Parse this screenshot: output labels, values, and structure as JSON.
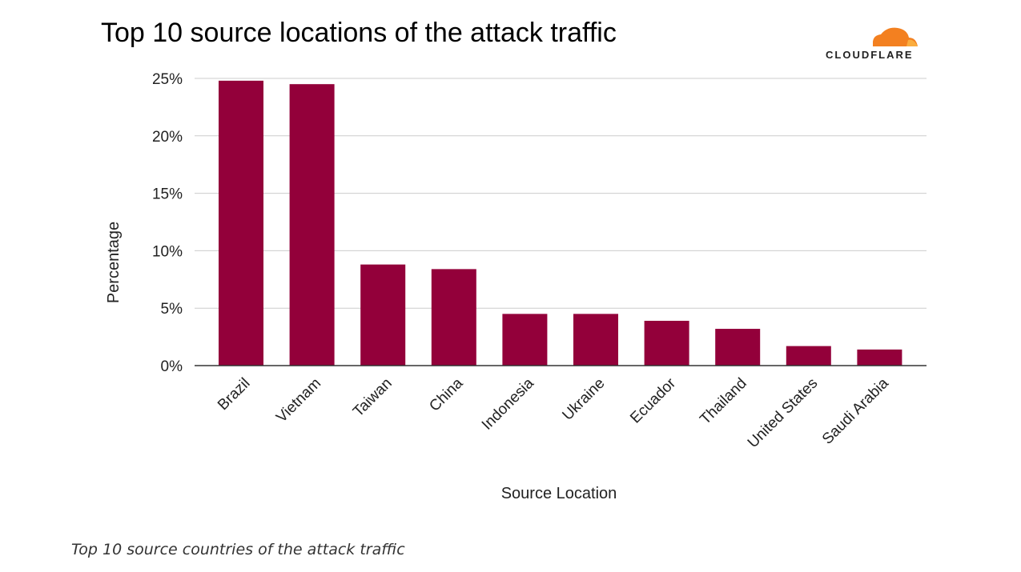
{
  "brand": {
    "name": "CLOUDFLARE",
    "logo_color": "#f38020",
    "logo_highlight": "#faad3f"
  },
  "caption": "Top 10 source countries of the attack traffic",
  "chart_data": {
    "type": "bar",
    "title": "Top 10 source locations of the attack traffic",
    "xlabel": "Source Location",
    "ylabel": "Percentage",
    "categories": [
      "Brazil",
      "Vietnam",
      "Taiwan",
      "China",
      "Indonesia",
      "Ukraine",
      "Ecuador",
      "Thailand",
      "United States",
      "Saudi Arabia"
    ],
    "values": [
      24.8,
      24.5,
      8.8,
      8.4,
      4.5,
      4.5,
      3.9,
      3.2,
      1.7,
      1.4
    ],
    "ylim": [
      0,
      25
    ],
    "yticks": [
      0,
      5,
      10,
      15,
      20,
      25
    ],
    "ytick_labels": [
      "0%",
      "5%",
      "10%",
      "15%",
      "20%",
      "25%"
    ],
    "grid": true,
    "legend": "none",
    "bar_color": "#93003a"
  }
}
